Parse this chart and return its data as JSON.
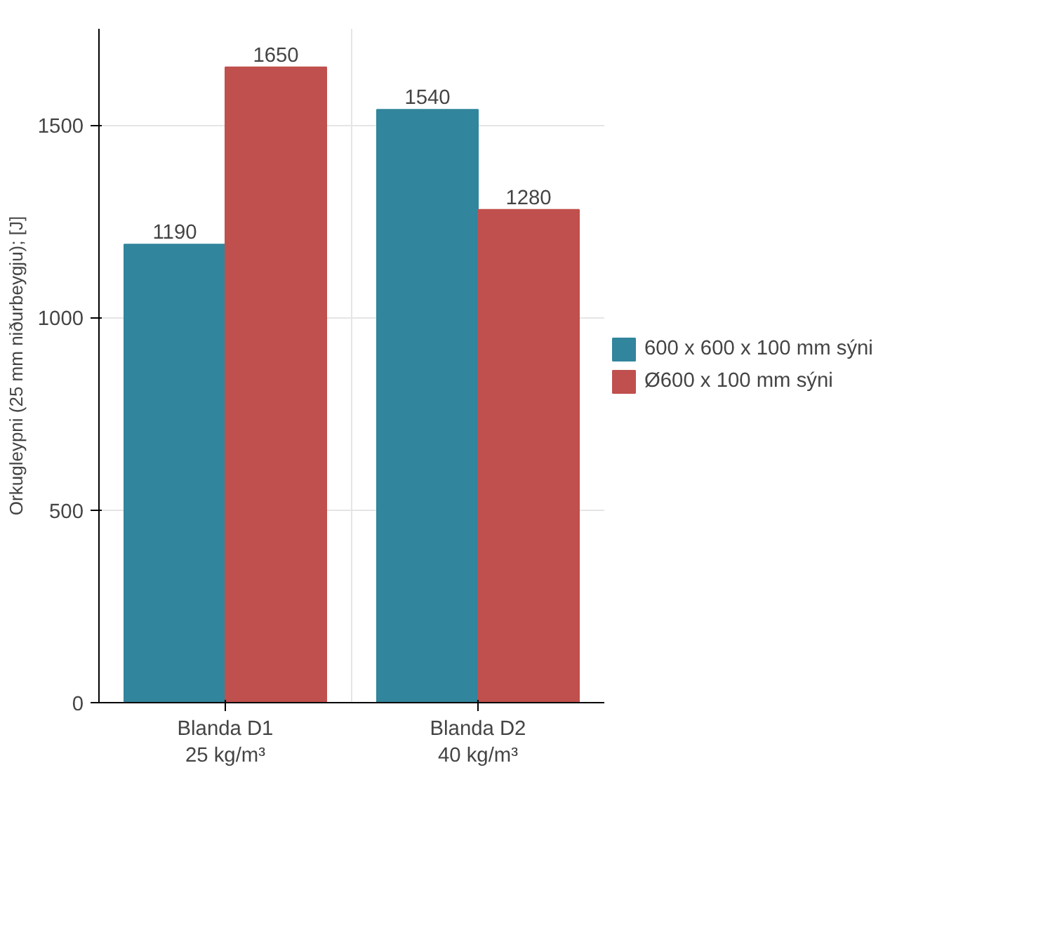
{
  "chart_data": {
    "type": "bar",
    "ylabel": "Orkugleypni (25 mm niðurbeygju); [J]",
    "categories": [
      "Blanda D1\n25 kg/m³",
      "Blanda D2\n40 kg/m³"
    ],
    "series": [
      {
        "name": "600 x 600 x 100 mm sýni",
        "color": "#31859c",
        "values": [
          1190,
          1540
        ]
      },
      {
        "name": "Ø600 x 100 mm sýni",
        "color": "#c0504d",
        "values": [
          1650,
          1280
        ]
      }
    ],
    "ylim": [
      0,
      1750
    ],
    "yticks": [
      0,
      500,
      1000,
      1500
    ],
    "grid": true,
    "legend": "right",
    "data_labels": true
  }
}
